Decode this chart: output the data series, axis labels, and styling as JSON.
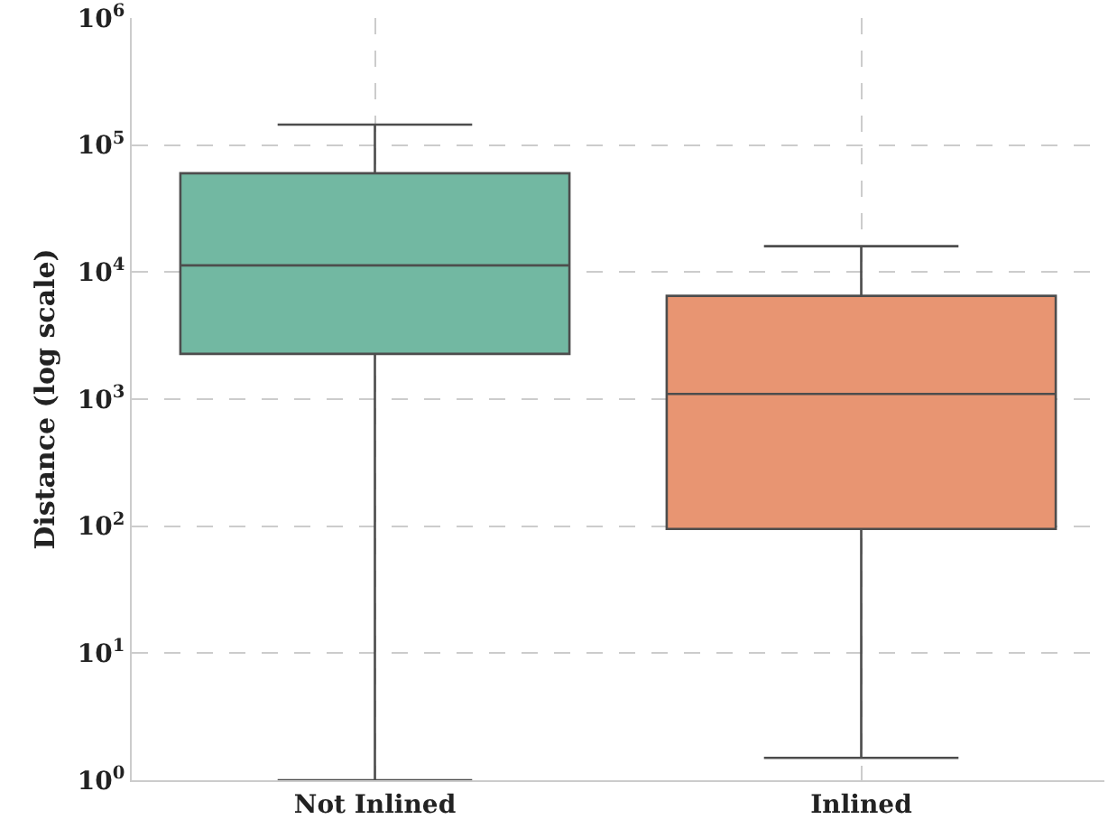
{
  "chart_data": {
    "type": "box",
    "ylabel": "Distance (log scale)",
    "categories": [
      "Not Inlined",
      "Inlined"
    ],
    "colors": [
      "#72b8a2",
      "#e89572"
    ],
    "boxes": [
      {
        "low": 1,
        "q1": 2270,
        "median": 11300,
        "q3": 60000,
        "high": 145000
      },
      {
        "low": 1.5,
        "q1": 95,
        "median": 1100,
        "q3": 6500,
        "high": 16000
      }
    ],
    "log": true,
    "ylim": [
      1,
      1000000
    ],
    "yticks": [
      {
        "value": 1,
        "label": "10$^{0}$"
      },
      {
        "value": 10,
        "label": "10$^{1}$"
      },
      {
        "value": 100,
        "label": "10$^{2}$"
      },
      {
        "value": 1000,
        "label": "10$^{3}$"
      },
      {
        "value": 10000,
        "label": "10$^{4}$"
      },
      {
        "value": 100000,
        "label": "10$^{5}$"
      },
      {
        "value": 1000000,
        "label": "10$^{6}$"
      }
    ],
    "grid": true
  }
}
